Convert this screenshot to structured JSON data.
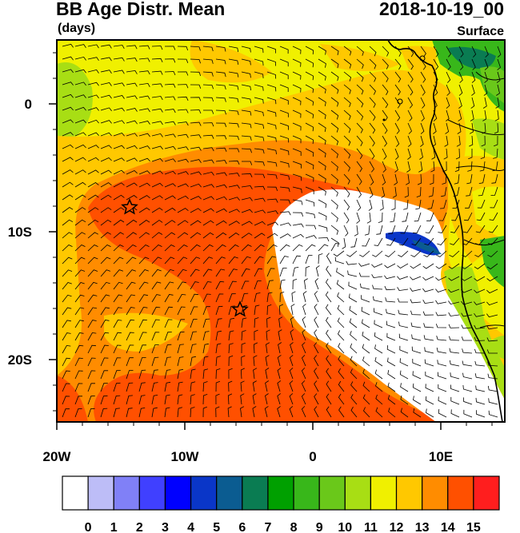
{
  "header": {
    "title": "BB Age Distr. Mean",
    "datetime": "2018-10-19_00",
    "units": "(days)",
    "level": "Surface"
  },
  "map": {
    "lat_labels": [
      "0",
      "10S",
      "20S"
    ],
    "lon_labels": [
      "20W",
      "10W",
      "0",
      "10E"
    ],
    "markers": [
      {
        "name": "star-marker-1",
        "lon": "14.3W",
        "lat": "8.1S"
      },
      {
        "name": "star-marker-2",
        "lon": "5.7W",
        "lat": "16.1S"
      }
    ],
    "overlays": [
      "wind-barbs",
      "coastline"
    ]
  },
  "colorbar": {
    "labels": [
      "0",
      "1",
      "2",
      "3",
      "4",
      "5",
      "6",
      "7",
      "8",
      "9",
      "10",
      "11",
      "12",
      "13",
      "14",
      "15"
    ],
    "colors": [
      "#ffffff",
      "#bdbdf7",
      "#8080f7",
      "#4040ff",
      "#0000ff",
      "#0a36c8",
      "#0b5c91",
      "#0a7c52",
      "#00a000",
      "#38b71a",
      "#6ac81a",
      "#a8de14",
      "#f0f000",
      "#ffc800",
      "#ff8c00",
      "#ff5000",
      "#ff1e1e"
    ]
  }
}
